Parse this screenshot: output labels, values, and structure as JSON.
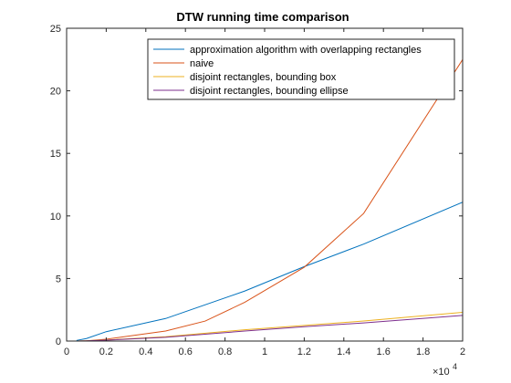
{
  "chart_data": {
    "type": "line",
    "title": "DTW running time comparison",
    "xlabel": "",
    "ylabel": "",
    "xlim": [
      0,
      20000
    ],
    "ylim": [
      0,
      25
    ],
    "x_ticks": [
      0,
      2000,
      4000,
      6000,
      8000,
      10000,
      12000,
      14000,
      16000,
      18000,
      20000
    ],
    "x_tick_labels": [
      "0",
      "0.2",
      "0.4",
      "0.6",
      "0.8",
      "1",
      "1.2",
      "1.4",
      "1.6",
      "1.8",
      "2"
    ],
    "x_exponent_label": "×10",
    "x_exponent_power": "4",
    "y_ticks": [
      0,
      5,
      10,
      15,
      20,
      25
    ],
    "y_tick_labels": [
      "0",
      "5",
      "10",
      "15",
      "20",
      "25"
    ],
    "grid": false,
    "legend_position": "top-right",
    "series": [
      {
        "name": "approximation algorithm with overlapping rectangles",
        "color": "#0072BD",
        "x": [
          500,
          1000,
          2000,
          5000,
          9000,
          12000,
          15000,
          20000
        ],
        "y": [
          0.05,
          0.2,
          0.75,
          1.8,
          4.0,
          5.95,
          7.75,
          11.1
        ]
      },
      {
        "name": "naive",
        "color": "#D95319",
        "x": [
          500,
          1000,
          2000,
          5000,
          7000,
          9000,
          12000,
          15000,
          20000
        ],
        "y": [
          0.0,
          0.02,
          0.15,
          0.8,
          1.6,
          3.1,
          5.9,
          10.2,
          22.5
        ]
      },
      {
        "name": "disjoint rectangles, bounding box",
        "color": "#EDB120",
        "x": [
          500,
          1000,
          2000,
          5000,
          9000,
          12000,
          15000,
          20000
        ],
        "y": [
          0.0,
          0.02,
          0.08,
          0.35,
          0.9,
          1.25,
          1.6,
          2.3
        ]
      },
      {
        "name": "disjoint rectangles, bounding ellipse",
        "color": "#7E2F8E",
        "x": [
          500,
          1000,
          2000,
          5000,
          9000,
          12000,
          15000,
          20000
        ],
        "y": [
          0.0,
          0.02,
          0.07,
          0.3,
          0.8,
          1.15,
          1.45,
          2.05
        ]
      }
    ]
  }
}
